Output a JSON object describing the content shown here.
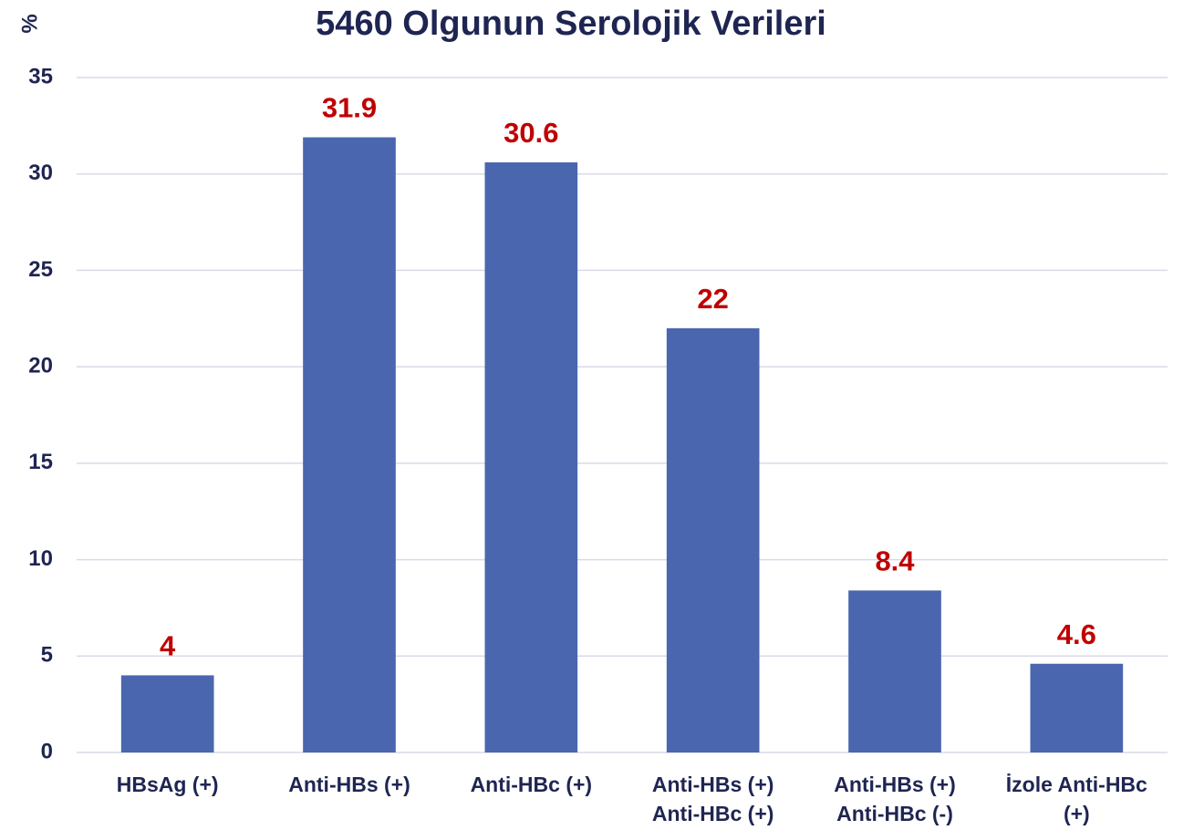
{
  "chart_data": {
    "type": "bar",
    "title": "5460 Olgunun Serolojik Verileri",
    "y_label": "%",
    "categories": [
      [
        "HBsAg (+)"
      ],
      [
        "Anti-HBs (+)"
      ],
      [
        "Anti-HBc (+)"
      ],
      [
        "Anti-HBs (+)",
        "Anti-HBc (+)"
      ],
      [
        "Anti-HBs (+)",
        "Anti-HBc (-)"
      ],
      [
        "İzole Anti-HBc",
        "(+)"
      ]
    ],
    "values": [
      4,
      31.9,
      30.6,
      22,
      8.4,
      4.6
    ],
    "color": "#4a66ae",
    "label_color": "#c00000",
    "ylim": [
      0,
      35
    ],
    "yticks": [
      0,
      5,
      10,
      15,
      20,
      25,
      30,
      35
    ],
    "grid": true
  }
}
